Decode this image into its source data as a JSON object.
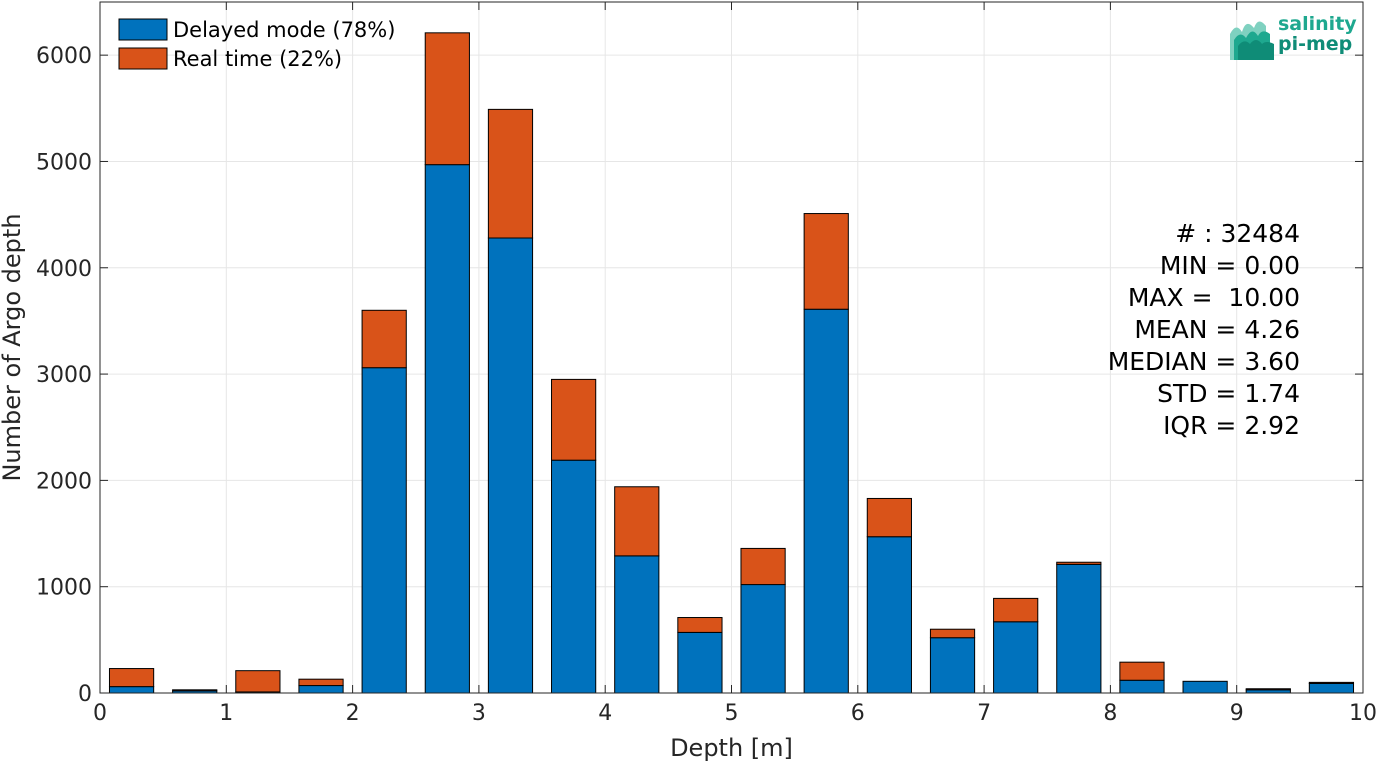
{
  "chart_data": {
    "type": "bar",
    "stacked": true,
    "title": "",
    "xlabel": "Depth [m]",
    "ylabel": "Number of Argo depth",
    "xlim": [
      0,
      10
    ],
    "ylim": [
      0,
      6500
    ],
    "xticks": [
      "0",
      "1",
      "2",
      "3",
      "4",
      "5",
      "6",
      "7",
      "8",
      "9",
      "10"
    ],
    "yticks": [
      "0",
      "1000",
      "2000",
      "3000",
      "4000",
      "5000",
      "6000"
    ],
    "grid": true,
    "legend_position": "top-left",
    "bin_width": 0.5,
    "x": [
      0.25,
      0.75,
      1.25,
      1.75,
      2.25,
      2.75,
      3.25,
      3.75,
      4.25,
      4.75,
      5.25,
      5.75,
      6.25,
      6.75,
      7.25,
      7.75,
      8.25,
      8.75,
      9.25,
      9.75
    ],
    "series": [
      {
        "name": "Delayed mode (78%)",
        "color": "#0072bd",
        "values": [
          60,
          20,
          10,
          70,
          3060,
          4970,
          4280,
          2190,
          1290,
          570,
          1020,
          3610,
          1470,
          520,
          670,
          1210,
          120,
          110,
          30,
          90
        ]
      },
      {
        "name": "Real time (22%)",
        "color": "#d95319",
        "values": [
          170,
          10,
          200,
          60,
          540,
          1240,
          1210,
          760,
          650,
          140,
          340,
          900,
          360,
          80,
          220,
          20,
          170,
          0,
          10,
          10
        ]
      }
    ],
    "annotations": [
      "# : 32484",
      "MIN = 0.00",
      "MAX =  10.00",
      "MEAN = 4.26",
      "MEDIAN = 3.60",
      "STD = 1.74",
      "IQR = 2.92"
    ]
  },
  "logo": {
    "line1": "salinity",
    "line2": "pi-mep",
    "colors": [
      "#1ea88f",
      "#0f8c77",
      "#7fd1c0"
    ]
  }
}
